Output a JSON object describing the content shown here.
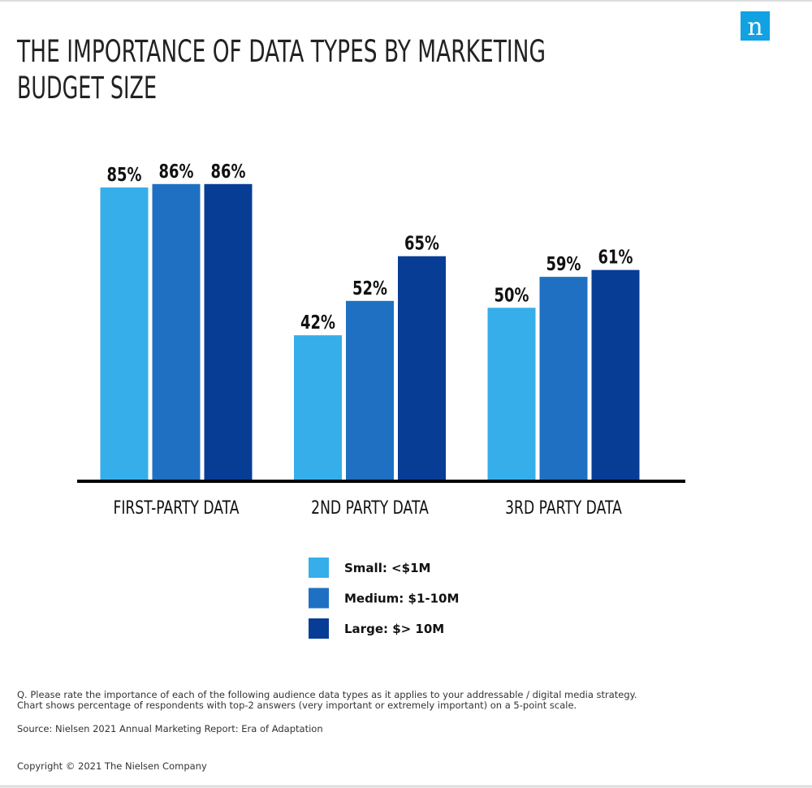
{
  "chart_data": {
    "type": "bar",
    "title": [
      "THE IMPORTANCE OF DATA TYPES BY MARKETING",
      "BUDGET SIZE"
    ],
    "categories": [
      "FIRST-PARTY DATA",
      "2ND PARTY DATA",
      "3RD PARTY DATA"
    ],
    "series": [
      {
        "name": "Small: <$1M",
        "color": "#36aeea",
        "values": [
          85,
          42,
          50
        ],
        "value_labels": [
          "85%",
          "42%",
          "50%"
        ]
      },
      {
        "name": "Medium: $1-10M",
        "color": "#1f70c2",
        "values": [
          86,
          52,
          59
        ],
        "value_labels": [
          "86%",
          "52%",
          "59%"
        ]
      },
      {
        "name": "Large: $> 10M",
        "color": "#083d96",
        "values": [
          86,
          65,
          61
        ],
        "value_labels": [
          "86%",
          "65%",
          "61%"
        ]
      }
    ],
    "ylim": [
      0,
      100
    ]
  },
  "logo": "n",
  "notes": [
    "Q. Please rate the importance of each of the following audience data types as it applies to your addressable / digital media strategy.",
    "Chart shows percentage of respondents with top-2 answers (very important or extremely important) on a 5-point scale.",
    "Source: Nielsen 2021 Annual Marketing Report: Era of Adaptation",
    "Copyright © 2021 The Nielsen Company"
  ]
}
